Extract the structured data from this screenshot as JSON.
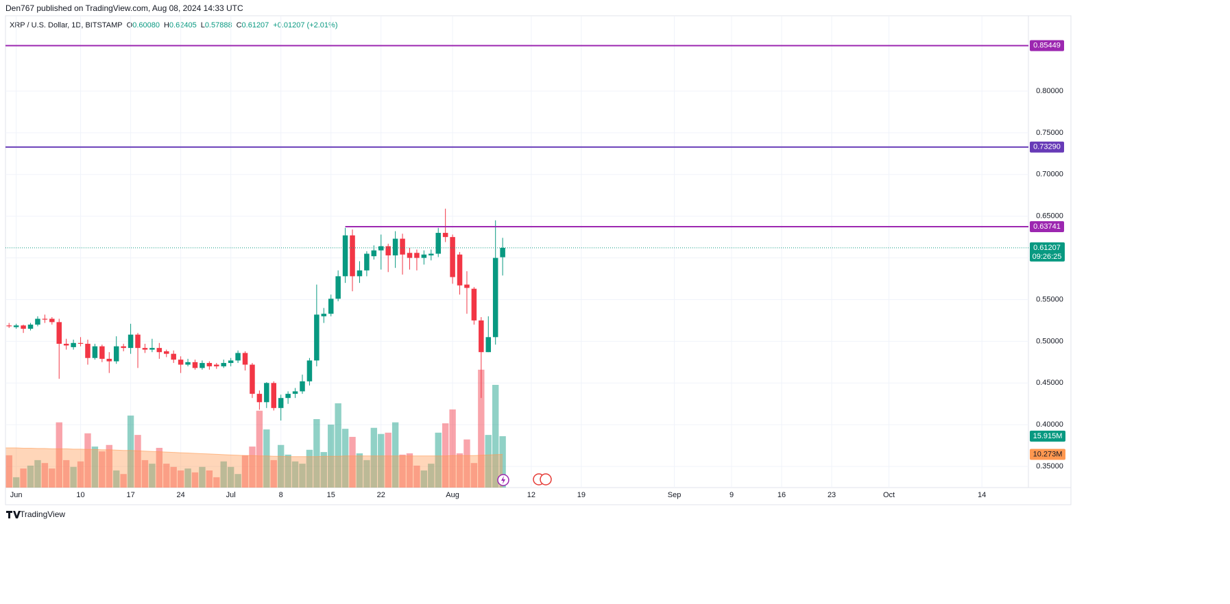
{
  "header": {
    "publisher": "Den767 published on TradingView.com, Aug 08, 2024 14:33 UTC",
    "symbol": "XRP / U.S. Dollar, 1D, BITSTAMP",
    "ohlc": [
      {
        "key": "O",
        "value": "0.60080"
      },
      {
        "key": "H",
        "value": "0.62405"
      },
      {
        "key": "L",
        "value": "0.57888"
      },
      {
        "key": "C",
        "value": "0.61207"
      }
    ],
    "change": "+0.01207 (+2.01%)"
  },
  "chart_data": {
    "type": "candlestick",
    "up_color": "#089981",
    "down_color": "#f23645",
    "grid": true,
    "x": [
      0,
      1,
      2,
      3,
      4,
      5,
      6,
      7,
      8,
      9,
      10,
      11,
      12,
      13,
      14,
      15,
      16,
      17,
      18,
      19,
      20,
      21,
      22,
      23,
      24,
      25,
      26,
      27,
      28,
      29,
      30,
      31,
      32,
      33,
      34,
      35,
      36,
      37,
      38,
      39,
      40,
      41,
      42,
      43,
      44,
      45,
      46,
      47,
      48,
      49,
      50,
      51,
      52,
      53,
      54,
      55,
      56,
      57,
      58,
      59,
      60,
      61,
      62,
      63,
      64,
      65,
      66,
      67,
      68,
      69
    ],
    "open": [
      0.519,
      0.517,
      0.519,
      0.515,
      0.52,
      0.527,
      0.527,
      0.523,
      0.497,
      0.493,
      0.498,
      0.497,
      0.48,
      0.494,
      0.479,
      0.476,
      0.494,
      0.492,
      0.508,
      0.492,
      0.49,
      0.492,
      0.488,
      0.485,
      0.478,
      0.472,
      0.475,
      0.468,
      0.474,
      0.472,
      0.47,
      0.474,
      0.477,
      0.486,
      0.472,
      0.437,
      0.427,
      0.45,
      0.42,
      0.432,
      0.437,
      0.44,
      0.452,
      0.477,
      0.53,
      0.533,
      0.551,
      0.578,
      0.627,
      0.578,
      0.585,
      0.602,
      0.609,
      0.614,
      0.603,
      0.623,
      0.606,
      0.606,
      0.6,
      0.603,
      0.605,
      0.63,
      0.625,
      0.604,
      0.568,
      0.563,
      0.525,
      0.487,
      0.505,
      0.6008
    ],
    "high": [
      0.522,
      0.521,
      0.52,
      0.522,
      0.53,
      0.532,
      0.529,
      0.527,
      0.503,
      0.502,
      0.505,
      0.502,
      0.497,
      0.496,
      0.487,
      0.506,
      0.497,
      0.521,
      0.51,
      0.497,
      0.503,
      0.498,
      0.49,
      0.489,
      0.482,
      0.479,
      0.478,
      0.477,
      0.476,
      0.474,
      0.478,
      0.48,
      0.489,
      0.488,
      0.474,
      0.441,
      0.451,
      0.452,
      0.436,
      0.44,
      0.444,
      0.46,
      0.48,
      0.568,
      0.54,
      0.556,
      0.585,
      0.636,
      0.634,
      0.596,
      0.608,
      0.615,
      0.628,
      0.617,
      0.632,
      0.629,
      0.612,
      0.61,
      0.609,
      0.61,
      0.636,
      0.659,
      0.628,
      0.607,
      0.584,
      0.565,
      0.529,
      0.53,
      0.645,
      0.62405
    ],
    "low": [
      0.516,
      0.515,
      0.51,
      0.513,
      0.518,
      0.522,
      0.52,
      0.455,
      0.49,
      0.49,
      0.494,
      0.472,
      0.478,
      0.475,
      0.462,
      0.473,
      0.488,
      0.485,
      0.468,
      0.486,
      0.487,
      0.479,
      0.481,
      0.474,
      0.462,
      0.47,
      0.466,
      0.466,
      0.466,
      0.467,
      0.468,
      0.47,
      0.474,
      0.465,
      0.432,
      0.418,
      0.42,
      0.417,
      0.405,
      0.425,
      0.432,
      0.437,
      0.447,
      0.47,
      0.522,
      0.53,
      0.548,
      0.57,
      0.56,
      0.57,
      0.578,
      0.598,
      0.586,
      0.583,
      0.588,
      0.58,
      0.586,
      0.585,
      0.592,
      0.597,
      0.601,
      0.619,
      0.569,
      0.556,
      0.533,
      0.52,
      0.432,
      0.487,
      0.496,
      0.57888
    ],
    "close": [
      0.518,
      0.519,
      0.515,
      0.52,
      0.527,
      0.526,
      0.523,
      0.497,
      0.495,
      0.498,
      0.497,
      0.48,
      0.494,
      0.479,
      0.476,
      0.494,
      0.492,
      0.508,
      0.492,
      0.49,
      0.492,
      0.487,
      0.485,
      0.478,
      0.472,
      0.475,
      0.468,
      0.474,
      0.47,
      0.47,
      0.474,
      0.477,
      0.486,
      0.472,
      0.437,
      0.427,
      0.45,
      0.42,
      0.432,
      0.437,
      0.44,
      0.452,
      0.477,
      0.532,
      0.533,
      0.551,
      0.578,
      0.627,
      0.578,
      0.585,
      0.605,
      0.609,
      0.614,
      0.603,
      0.623,
      0.604,
      0.6,
      0.6,
      0.604,
      0.605,
      0.63,
      0.625,
      0.577,
      0.567,
      0.564,
      0.525,
      0.487,
      0.505,
      0.6,
      0.61207
    ],
    "xlim": [
      -0.5,
      142.5
    ],
    "xticks": [
      {
        "value": 1,
        "label": "Jun"
      },
      10,
      17,
      24,
      {
        "value": 31,
        "label": "Jul"
      },
      {
        "value": 38,
        "label": "8"
      },
      {
        "value": 45,
        "label": "15"
      },
      {
        "value": 52,
        "label": "22"
      },
      {
        "value": 62,
        "label": "Aug"
      },
      {
        "value": 73,
        "label": "12"
      },
      {
        "value": 80,
        "label": "19"
      },
      {
        "value": 93,
        "label": "Sep"
      },
      {
        "value": 101,
        "label": "9"
      },
      {
        "value": 108,
        "label": "16"
      },
      {
        "value": 115,
        "label": "23"
      },
      {
        "value": 123,
        "label": "Oct"
      },
      {
        "value": 136,
        "label": "14"
      }
    ],
    "ylim": [
      0.3246,
      0.8895
    ],
    "yticks": [
      {
        "value": 0.35,
        "label": "0.35000"
      },
      {
        "value": 0.4,
        "label": "0.40000"
      },
      {
        "value": 0.45,
        "label": "0.45000"
      },
      {
        "value": 0.5,
        "label": "0.50000"
      },
      {
        "value": 0.55,
        "label": "0.55000"
      },
      {
        "value": 0.6,
        "label": "0.60000"
      },
      {
        "value": 0.65,
        "label": "0.65000"
      },
      {
        "value": 0.7,
        "label": "0.70000"
      },
      {
        "value": 0.75,
        "label": "0.75000"
      },
      {
        "value": 0.8,
        "label": "0.80000"
      }
    ],
    "levels": [
      {
        "value": 0.85449,
        "label": "0.85449",
        "color": "#9c27b0"
      },
      {
        "value": 0.7329,
        "label": "0.73290",
        "color": "#673ab7"
      },
      {
        "value": 0.63741,
        "label": "0.63741",
        "color": "#9c27b0",
        "x_start": 47
      }
    ],
    "last_price": {
      "value": 0.61207,
      "label": "0.61207",
      "countdown": "09:26:25",
      "color": "#089981"
    },
    "volume": {
      "vlim": [
        0,
        60
      ],
      "values": [
        10.0,
        3.2,
        5.9,
        6.8,
        8.5,
        7.6,
        5.9,
        20.2,
        8.5,
        6.4,
        8.1,
        16.8,
        12.7,
        11.2,
        13.2,
        5.3,
        4.2,
        22.3,
        16.3,
        8.5,
        7.4,
        12.3,
        7.4,
        6.4,
        5.3,
        5.9,
        4.7,
        6.4,
        5.3,
        3.2,
        8.1,
        6.4,
        4.2,
        10.0,
        12.7,
        23.8,
        18.0,
        8.5,
        13.2,
        10.2,
        8.1,
        7.4,
        11.7,
        21.2,
        11.0,
        19.5,
        26.1,
        18.2,
        15.7,
        10.6,
        8.5,
        18.5,
        16.6,
        17.0,
        20.2,
        10.2,
        10.6,
        6.8,
        5.3,
        7.4,
        17.0,
        19.9,
        24.2,
        10.6,
        14.9,
        7.6,
        36.5,
        16.3,
        31.8,
        15.915
      ],
      "last_label": "15.915M",
      "ma": [
        12.3,
        12.3,
        12.2,
        12.2,
        12.1,
        12.1,
        12.0,
        12.0,
        12.0,
        11.9,
        11.9,
        11.8,
        11.8,
        11.7,
        11.7,
        11.6,
        11.5,
        11.5,
        11.4,
        11.3,
        11.2,
        11.1,
        11.0,
        10.9,
        10.8,
        10.7,
        10.6,
        10.5,
        10.4,
        10.3,
        10.2,
        10.1,
        10.0,
        9.9,
        9.9,
        9.8,
        9.8,
        9.7,
        9.7,
        9.6,
        9.6,
        9.6,
        9.6,
        9.6,
        9.7,
        9.7,
        9.7,
        9.8,
        9.8,
        9.8,
        9.8,
        9.8,
        9.8,
        9.8,
        9.8,
        9.8,
        9.8,
        9.8,
        9.8,
        9.8,
        9.8,
        9.8,
        9.9,
        9.9,
        9.9,
        9.9,
        10.0,
        10.1,
        10.2,
        10.273
      ],
      "ma_last_label": "10.273M",
      "ma_color": "#ff9850"
    }
  },
  "footer": {
    "brand": "TradingView"
  }
}
